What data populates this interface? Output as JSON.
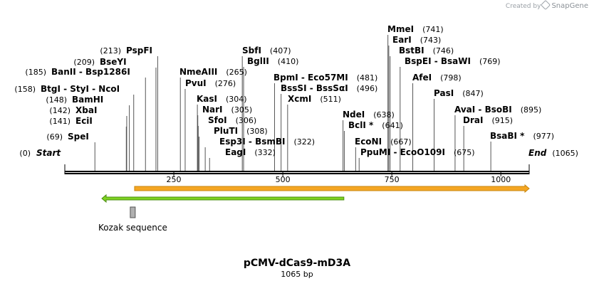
{
  "credit": {
    "prefix": "Created by",
    "brand": "SnapGene"
  },
  "construct": {
    "name": "pCMV-dCas9-mD3A",
    "length_label": "1065 bp",
    "length": 1065
  },
  "ruler": {
    "ticks": [
      250,
      500,
      750,
      1000
    ]
  },
  "sites": [
    {
      "name": "Start",
      "pos": 0,
      "text": "(0)",
      "italic": true
    },
    {
      "name": "SpeI",
      "pos": 69,
      "text": "(69)"
    },
    {
      "name": "EciI",
      "pos": 141,
      "text": "(141)"
    },
    {
      "name": "XbaI",
      "pos": 142,
      "text": "(142)"
    },
    {
      "name": "BamHI",
      "pos": 148,
      "text": "(148)"
    },
    {
      "name": "BtgI - StyI - NcoI",
      "pos": 158,
      "text": "(158)"
    },
    {
      "name": "BanII - Bsp1286I",
      "pos": 185,
      "text": "(185)"
    },
    {
      "name": "BseYI",
      "pos": 209,
      "text": "(209)"
    },
    {
      "name": "PspFI",
      "pos": 213,
      "text": "(213)"
    },
    {
      "name": "NmeAIII",
      "pos": 265,
      "text": "(265)"
    },
    {
      "name": "PvuI",
      "pos": 276,
      "text": "(276)"
    },
    {
      "name": "KasI",
      "pos": 304,
      "text": "(304)"
    },
    {
      "name": "NarI",
      "pos": 305,
      "text": "(305)"
    },
    {
      "name": "SfoI",
      "pos": 306,
      "text": "(306)"
    },
    {
      "name": "PluTI",
      "pos": 308,
      "text": "(308)"
    },
    {
      "name": "Esp3I - BsmBI",
      "pos": 322,
      "text": "(322)"
    },
    {
      "name": "EagI",
      "pos": 332,
      "text": "(332)"
    },
    {
      "name": "SbfI",
      "pos": 407,
      "text": "(407)"
    },
    {
      "name": "BglII",
      "pos": 410,
      "text": "(410)"
    },
    {
      "name": "BpmI - Eco57MI",
      "pos": 481,
      "text": "(481)"
    },
    {
      "name": "BssSI - BssSαI",
      "pos": 496,
      "text": "(496)"
    },
    {
      "name": "XcmI",
      "pos": 511,
      "text": "(511)"
    },
    {
      "name": "NdeI",
      "pos": 638,
      "text": "(638)"
    },
    {
      "name": "BclI *",
      "pos": 641,
      "text": "(641)"
    },
    {
      "name": "EcoNI",
      "pos": 667,
      "text": "(667)"
    },
    {
      "name": "PpuMI - EcoO109I",
      "pos": 675,
      "text": "(675)"
    },
    {
      "name": "MmeI",
      "pos": 741,
      "text": "(741)"
    },
    {
      "name": "EarI",
      "pos": 743,
      "text": "(743)"
    },
    {
      "name": "BstBI",
      "pos": 746,
      "text": "(746)"
    },
    {
      "name": "BspEI - BsaWI",
      "pos": 769,
      "text": "(769)"
    },
    {
      "name": "AfeI",
      "pos": 798,
      "text": "(798)"
    },
    {
      "name": "PasI",
      "pos": 847,
      "text": "(847)"
    },
    {
      "name": "AvaI - BsoBI",
      "pos": 895,
      "text": "(895)"
    },
    {
      "name": "DraI",
      "pos": 915,
      "text": "(915)"
    },
    {
      "name": "BsaBI *",
      "pos": 977,
      "text": "(977)"
    },
    {
      "name": "End",
      "pos": 1065,
      "text": "(1065)",
      "italic": true
    }
  ],
  "features": [
    {
      "name": "orange-feature-arrow",
      "start": 160,
      "end": 1065,
      "direction": "forward",
      "fill": "#f5a623",
      "stroke": "#c8860c"
    },
    {
      "name": "green-feature-arrow",
      "start": 85,
      "end": 640,
      "direction": "reverse",
      "fill": "#7ed321",
      "stroke": "#4a8c10"
    },
    {
      "name": "kozak-sequence",
      "start": 155,
      "end": 165,
      "label": "Kozak sequence",
      "fill": "#b0b0b0",
      "stroke": "#555555"
    }
  ],
  "colors": {
    "backbone": "#000000",
    "tick": "#555555",
    "label": "#000000"
  }
}
